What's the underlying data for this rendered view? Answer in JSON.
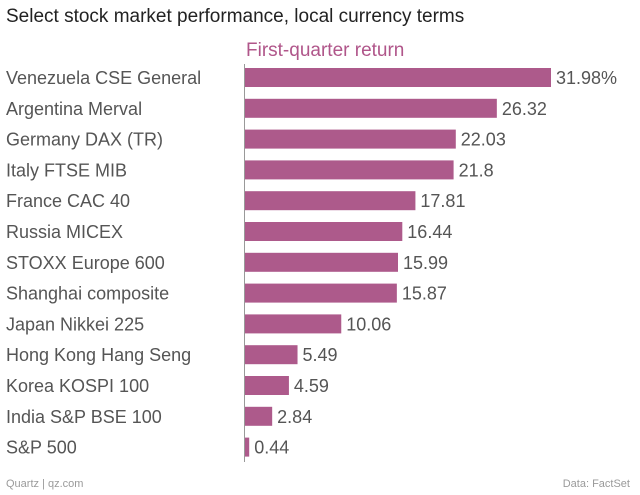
{
  "title": "Select stock market performance, local currency terms",
  "footer": {
    "credit": "Quartz | qz.com",
    "source": "Data: FactSet"
  },
  "colors": {
    "bar": "#ad5a8b",
    "series_label": "#b0568a",
    "axis": "#999999",
    "text": "#555555"
  },
  "chart_data": {
    "type": "bar",
    "orientation": "horizontal",
    "title": "Select stock market performance, local currency terms",
    "series_name": "First-quarter return",
    "categories": [
      "Venezuela CSE General",
      "Argentina Merval",
      "Germany DAX (TR)",
      "Italy FTSE MIB",
      "France CAC 40",
      "Russia MICEX",
      "STOXX Europe 600",
      "Shanghai composite",
      "Japan Nikkei 225",
      "Hong Kong Hang Seng",
      "Korea KOSPI 100",
      "India S&P BSE 100",
      "S&P 500"
    ],
    "values": [
      31.98,
      26.32,
      22.03,
      21.8,
      17.81,
      16.44,
      15.99,
      15.87,
      10.06,
      5.49,
      4.59,
      2.84,
      0.44
    ],
    "value_labels": [
      "31.98%",
      "26.32",
      "22.03",
      "21.8",
      "17.81",
      "16.44",
      "15.99",
      "15.87",
      "10.06",
      "5.49",
      "4.59",
      "2.84",
      "0.44"
    ],
    "xlim": [
      0,
      32
    ],
    "unit": "%"
  }
}
